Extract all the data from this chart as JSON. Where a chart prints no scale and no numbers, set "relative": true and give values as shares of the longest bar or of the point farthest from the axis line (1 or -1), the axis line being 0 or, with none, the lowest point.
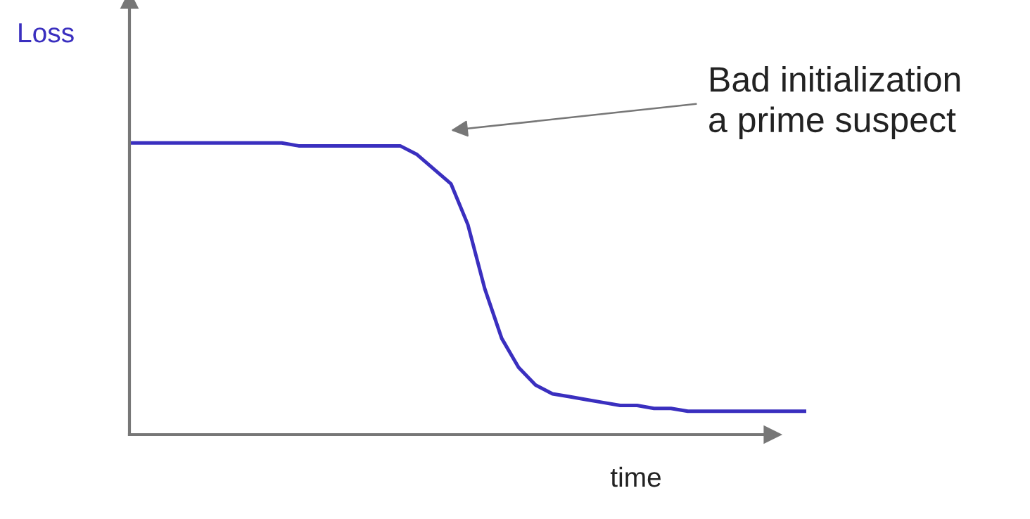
{
  "chart_data": {
    "type": "line",
    "relative": true,
    "xlabel": "time",
    "ylabel": "Loss",
    "annotations": [
      "Bad initialization\na prime suspect"
    ],
    "categories": [
      null,
      null,
      null,
      null,
      null,
      null,
      null,
      null,
      null,
      null,
      null,
      null,
      null,
      null,
      null,
      null,
      null,
      null,
      null,
      null,
      null,
      null,
      null,
      null,
      null,
      null,
      null,
      null,
      null,
      null,
      null,
      null,
      null,
      null,
      null,
      null,
      null,
      null,
      null,
      null,
      null
    ],
    "series": [
      {
        "color": "#3a2fbf",
        "values": [
          1.0,
          1.0,
          1.0,
          1.0,
          1.0,
          1.0,
          1.0,
          1.0,
          1.0,
          1.0,
          0.99,
          0.99,
          0.99,
          0.99,
          0.99,
          0.99,
          0.99,
          0.96,
          0.91,
          0.86,
          0.72,
          0.5,
          0.33,
          0.23,
          0.17,
          0.14,
          0.13,
          0.12,
          0.11,
          0.1,
          0.1,
          0.09,
          0.09,
          0.08,
          0.08,
          0.08,
          0.08,
          0.08,
          0.08,
          0.08,
          0.08
        ]
      }
    ],
    "marker": "none",
    "line_style": "solid"
  }
}
